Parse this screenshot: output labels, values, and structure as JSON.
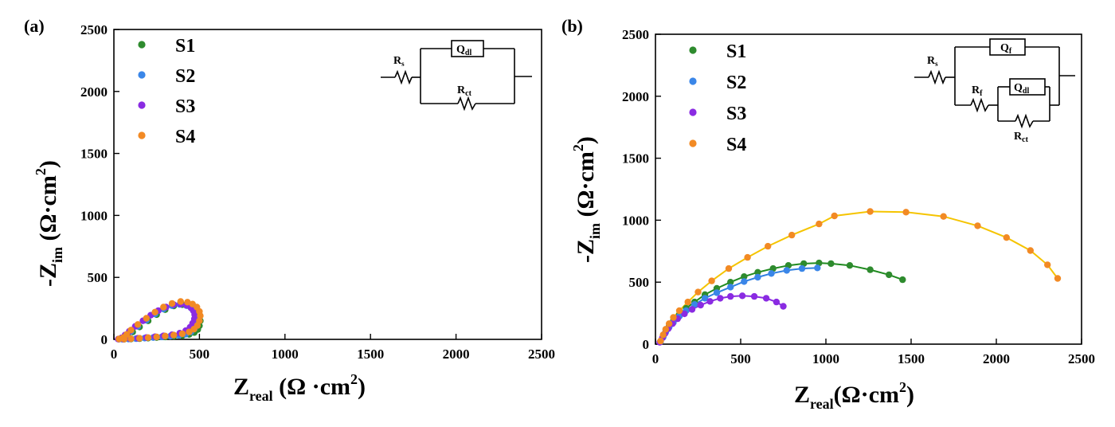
{
  "chart_data": [
    {
      "panel": "(a)",
      "type": "scatter",
      "xlim": [
        0,
        2500
      ],
      "ylim": [
        0,
        2500
      ],
      "xticks": [
        "0",
        "500",
        "1000",
        "1500",
        "2000",
        "2500"
      ],
      "yticks": [
        "0",
        "500",
        "1000",
        "1500",
        "2000",
        "2500"
      ],
      "xlabel": {
        "main": "Z",
        "sub": "real",
        "unit": " (Ω ·cm",
        "sup": "2",
        "close": ")"
      },
      "ylabel": {
        "main": "-Z",
        "sub": "im",
        "unit": " (Ω·cm",
        "sup": "2",
        "close": ")"
      },
      "legend_position": "top-left",
      "circuit": {
        "labels": [
          "R",
          "s",
          "Q",
          "dl",
          "R",
          "ct"
        ]
      },
      "series": [
        {
          "name": "S1",
          "color": "#2e8b2e",
          "points": [
            [
              30,
              2
            ],
            [
              60,
              10
            ],
            [
              80,
              30
            ],
            [
              110,
              60
            ],
            [
              150,
              100
            ],
            [
              200,
              150
            ],
            [
              250,
              200
            ],
            [
              300,
              240
            ],
            [
              350,
              270
            ],
            [
              400,
              280
            ],
            [
              440,
              270
            ],
            [
              470,
              250
            ],
            [
              490,
              220
            ],
            [
              500,
              190
            ],
            [
              505,
              150
            ],
            [
              500,
              110
            ],
            [
              490,
              80
            ],
            [
              470,
              55
            ],
            [
              440,
              40
            ],
            [
              400,
              30
            ],
            [
              350,
              25
            ],
            [
              300,
              20
            ],
            [
              250,
              15
            ],
            [
              200,
              10
            ],
            [
              150,
              6
            ],
            [
              100,
              3
            ],
            [
              60,
              1
            ]
          ]
        },
        {
          "name": "S2",
          "color": "#3a86e8",
          "points": [
            [
              30,
              2
            ],
            [
              55,
              12
            ],
            [
              75,
              35
            ],
            [
              100,
              65
            ],
            [
              140,
              105
            ],
            [
              190,
              155
            ],
            [
              240,
              205
            ],
            [
              290,
              245
            ],
            [
              340,
              272
            ],
            [
              385,
              282
            ],
            [
              425,
              272
            ],
            [
              455,
              250
            ],
            [
              475,
              222
            ],
            [
              485,
              190
            ],
            [
              488,
              155
            ],
            [
              482,
              118
            ],
            [
              470,
              85
            ],
            [
              450,
              60
            ],
            [
              420,
              42
            ],
            [
              380,
              32
            ],
            [
              330,
              26
            ],
            [
              280,
              20
            ],
            [
              230,
              15
            ],
            [
              180,
              10
            ],
            [
              130,
              6
            ],
            [
              85,
              3
            ],
            [
              50,
              1
            ]
          ]
        },
        {
          "name": "S3",
          "color": "#8a2be2",
          "points": [
            [
              25,
              2
            ],
            [
              45,
              12
            ],
            [
              65,
              35
            ],
            [
              90,
              65
            ],
            [
              125,
              105
            ],
            [
              170,
              150
            ],
            [
              215,
              195
            ],
            [
              260,
              232
            ],
            [
              305,
              260
            ],
            [
              350,
              280
            ],
            [
              390,
              285
            ],
            [
              425,
              275
            ],
            [
              450,
              255
            ],
            [
              465,
              230
            ],
            [
              472,
              200
            ],
            [
              470,
              165
            ],
            [
              460,
              130
            ],
            [
              445,
              98
            ],
            [
              420,
              70
            ],
            [
              385,
              50
            ],
            [
              340,
              37
            ],
            [
              290,
              28
            ],
            [
              240,
              21
            ],
            [
              190,
              15
            ],
            [
              140,
              9
            ],
            [
              95,
              5
            ],
            [
              55,
              2
            ]
          ]
        },
        {
          "name": "S4",
          "color": "#f28a24",
          "points": [
            [
              30,
              3
            ],
            [
              55,
              15
            ],
            [
              75,
              40
            ],
            [
              100,
              75
            ],
            [
              140,
              120
            ],
            [
              190,
              170
            ],
            [
              240,
              220
            ],
            [
              290,
              260
            ],
            [
              340,
              290
            ],
            [
              390,
              305
            ],
            [
              430,
              300
            ],
            [
              460,
              285
            ],
            [
              485,
              260
            ],
            [
              500,
              225
            ],
            [
              505,
              190
            ],
            [
              500,
              150
            ],
            [
              488,
              112
            ],
            [
              468,
              82
            ],
            [
              440,
              60
            ],
            [
              400,
              45
            ],
            [
              350,
              35
            ],
            [
              300,
              27
            ],
            [
              250,
              20
            ],
            [
              200,
              14
            ],
            [
              150,
              9
            ],
            [
              100,
              5
            ],
            [
              60,
              2
            ]
          ]
        }
      ]
    },
    {
      "panel": "(b)",
      "type": "scatter",
      "xlim": [
        0,
        2500
      ],
      "ylim": [
        0,
        2500
      ],
      "xticks": [
        "0",
        "500",
        "1000",
        "1500",
        "2000",
        "2500"
      ],
      "yticks": [
        "0",
        "500",
        "1000",
        "1500",
        "2000",
        "2500"
      ],
      "xlabel": {
        "main": "Z",
        "sub": "real",
        "unit": "(Ω·cm",
        "sup": "2",
        "close": ")"
      },
      "ylabel": {
        "main": "-Z",
        "sub": "im",
        "unit": " (Ω·cm",
        "sup": "2",
        "close": ")"
      },
      "legend_position": "top-left",
      "circuit": {
        "labels": [
          "R",
          "s",
          "Q",
          "f",
          "R",
          "f",
          "Q",
          "dl",
          "R",
          "ct"
        ]
      },
      "series": [
        {
          "name": "S1",
          "color": "#2e8b2e",
          "fit_color": "#1f8a1f",
          "points": [
            [
              30,
              20
            ],
            [
              45,
              60
            ],
            [
              60,
              100
            ],
            [
              80,
              145
            ],
            [
              105,
              190
            ],
            [
              140,
              240
            ],
            [
              180,
              290
            ],
            [
              230,
              340
            ],
            [
              290,
              400
            ],
            [
              360,
              450
            ],
            [
              440,
              500
            ],
            [
              520,
              545
            ],
            [
              600,
              580
            ],
            [
              690,
              610
            ],
            [
              780,
              635
            ],
            [
              870,
              650
            ],
            [
              960,
              655
            ],
            [
              1030,
              650
            ],
            [
              1140,
              635
            ],
            [
              1260,
              600
            ],
            [
              1370,
              560
            ],
            [
              1450,
              520
            ]
          ]
        },
        {
          "name": "S2",
          "color": "#3a86e8",
          "fit_color": "#2f7fe0",
          "points": [
            [
              30,
              20
            ],
            [
              45,
              55
            ],
            [
              60,
              95
            ],
            [
              80,
              135
            ],
            [
              105,
              175
            ],
            [
              140,
              225
            ],
            [
              180,
              270
            ],
            [
              230,
              320
            ],
            [
              290,
              370
            ],
            [
              360,
              415
            ],
            [
              440,
              460
            ],
            [
              520,
              505
            ],
            [
              600,
              540
            ],
            [
              680,
              570
            ],
            [
              770,
              595
            ],
            [
              860,
              610
            ],
            [
              950,
              615
            ]
          ]
        },
        {
          "name": "S3",
          "color": "#8a2be2",
          "fit_color": "#8a2be2",
          "points": [
            [
              25,
              15
            ],
            [
              40,
              50
            ],
            [
              55,
              85
            ],
            [
              75,
              125
            ],
            [
              100,
              165
            ],
            [
              130,
              205
            ],
            [
              170,
              245
            ],
            [
              215,
              280
            ],
            [
              265,
              315
            ],
            [
              320,
              345
            ],
            [
              380,
              370
            ],
            [
              440,
              385
            ],
            [
              510,
              390
            ],
            [
              580,
              385
            ],
            [
              650,
              370
            ],
            [
              710,
              340
            ],
            [
              750,
              305
            ]
          ]
        },
        {
          "name": "S4",
          "color": "#f28a24",
          "fit_color": "#f5c400",
          "points": [
            [
              30,
              25
            ],
            [
              45,
              75
            ],
            [
              60,
              120
            ],
            [
              80,
              165
            ],
            [
              105,
              215
            ],
            [
              140,
              270
            ],
            [
              190,
              340
            ],
            [
              250,
              420
            ],
            [
              330,
              510
            ],
            [
              430,
              610
            ],
            [
              540,
              700
            ],
            [
              660,
              790
            ],
            [
              800,
              880
            ],
            [
              960,
              970
            ],
            [
              1050,
              1035
            ],
            [
              1260,
              1070
            ],
            [
              1470,
              1065
            ],
            [
              1690,
              1030
            ],
            [
              1890,
              955
            ],
            [
              2060,
              860
            ],
            [
              2200,
              755
            ],
            [
              2300,
              640
            ],
            [
              2360,
              530
            ]
          ]
        }
      ]
    }
  ]
}
